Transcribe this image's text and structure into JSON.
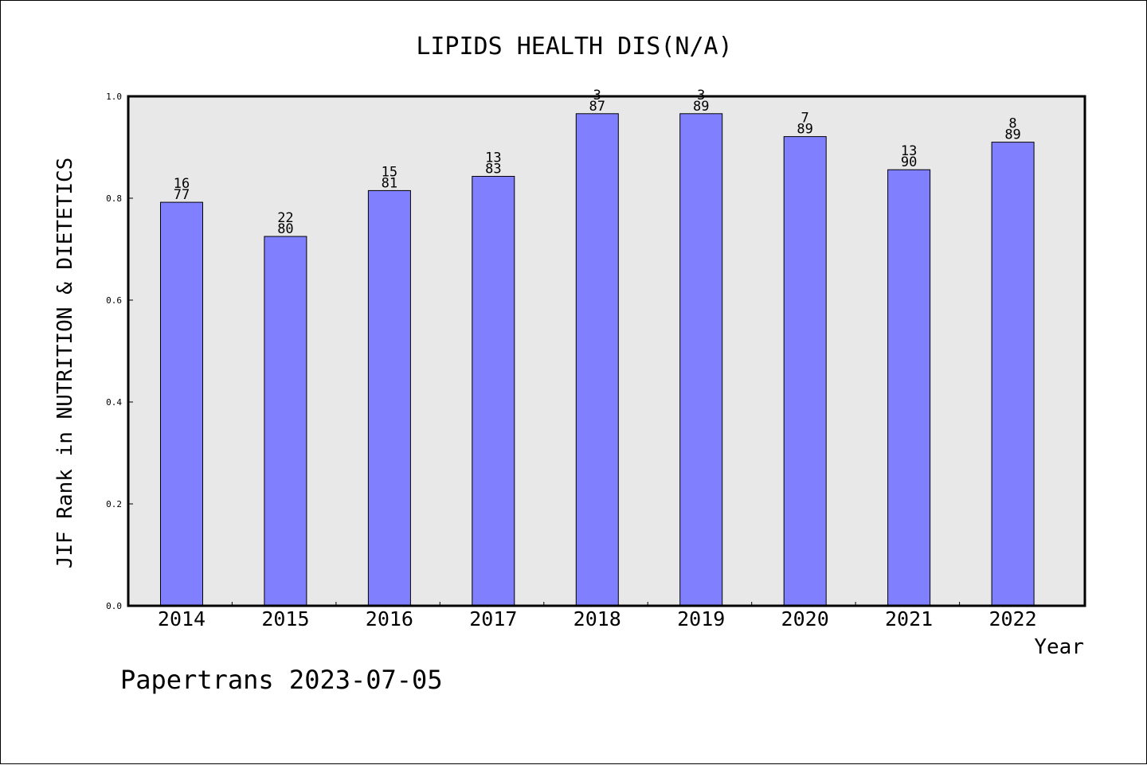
{
  "chart_data": {
    "type": "bar",
    "title": "LIPIDS HEALTH DIS(N/A)",
    "xlabel": "Year",
    "ylabel": "JIF Rank in NUTRITION & DIETETICS",
    "ylim": [
      0,
      1
    ],
    "yticks": [
      "0.0",
      "0.2",
      "0.4",
      "0.6",
      "0.8",
      "1.0"
    ],
    "categories": [
      "2014",
      "2015",
      "2016",
      "2017",
      "2018",
      "2019",
      "2020",
      "2021",
      "2022"
    ],
    "values": [
      0.792,
      0.725,
      0.815,
      0.843,
      0.966,
      0.966,
      0.921,
      0.856,
      0.91
    ],
    "labels_top": [
      "16",
      "22",
      "15",
      "13",
      "3",
      "3",
      "7",
      "13",
      "8"
    ],
    "labels_bottom": [
      "77",
      "80",
      "81",
      "83",
      "87",
      "89",
      "89",
      "90",
      "89"
    ],
    "bar_color": "#8080ff",
    "plot_background": "#e8e8e8",
    "grid": false,
    "legend": "none"
  },
  "footer": {
    "watermark": "Papertrans 2023-07-05"
  }
}
